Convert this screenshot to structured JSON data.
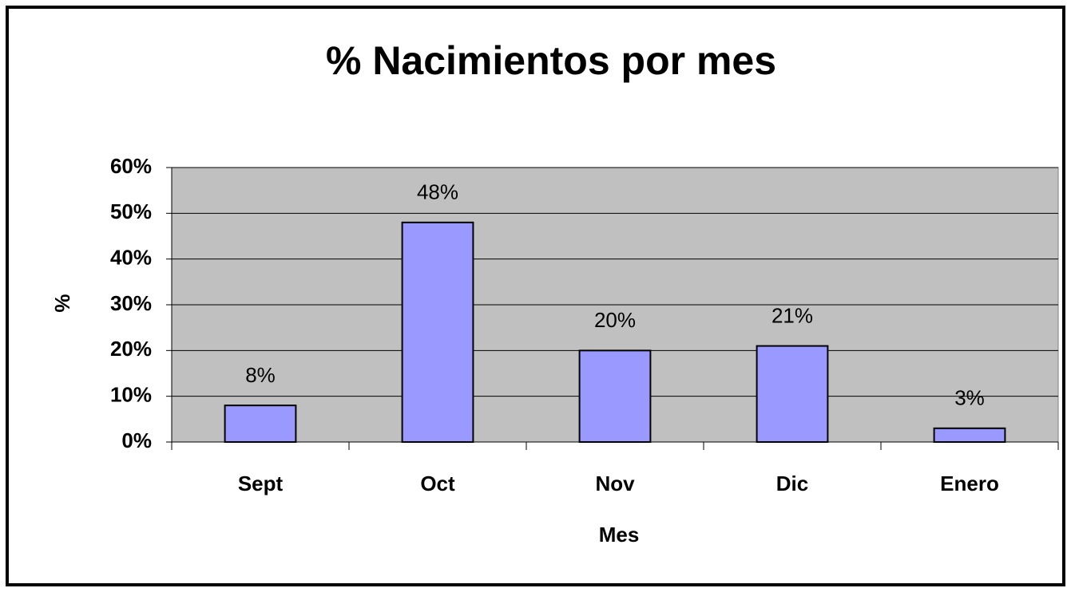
{
  "chart_data": {
    "type": "bar",
    "title": "% Nacimientos por mes",
    "x_label": "Mes",
    "y_label": "%",
    "categories": [
      "Sept",
      "Oct",
      "Nov",
      "Dic",
      "Enero"
    ],
    "values": [
      8,
      48,
      20,
      21,
      3
    ],
    "value_labels": [
      "8%",
      "48%",
      "20%",
      "21%",
      "3%"
    ],
    "color": "#9999ff",
    "ylim": [
      0,
      60
    ],
    "yticks": [
      {
        "value": 0,
        "label": "0%"
      },
      {
        "value": 10,
        "label": "10%"
      },
      {
        "value": 20,
        "label": "20%"
      },
      {
        "value": 30,
        "label": "30%"
      },
      {
        "value": 40,
        "label": "40%"
      },
      {
        "value": 50,
        "label": "50%"
      },
      {
        "value": 60,
        "label": "60%"
      }
    ],
    "grid": true
  }
}
